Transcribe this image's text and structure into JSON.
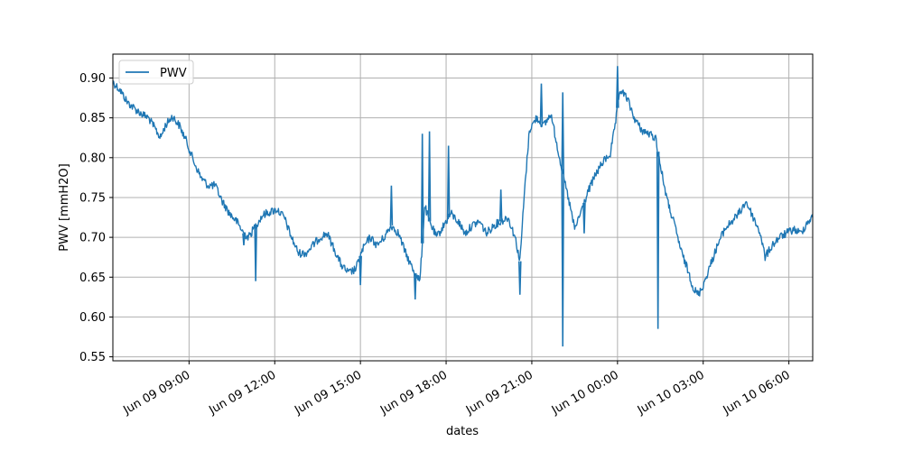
{
  "chart_data": {
    "type": "line",
    "title": "",
    "xlabel": "dates",
    "ylabel": "PWV [mmH2O]",
    "x_type": "datetime",
    "xlim": [
      "2024-06-09T06:20",
      "2024-06-10T06:50"
    ],
    "ylim": [
      0.545,
      0.93
    ],
    "grid": true,
    "legend": {
      "placement": "top-left",
      "entries": [
        "PWV"
      ]
    },
    "x_ticks": [
      {
        "value": "2024-06-09T09:00",
        "label": "Jun 09 09:00"
      },
      {
        "value": "2024-06-09T12:00",
        "label": "Jun 09 12:00"
      },
      {
        "value": "2024-06-09T15:00",
        "label": "Jun 09 15:00"
      },
      {
        "value": "2024-06-09T18:00",
        "label": "Jun 09 18:00"
      },
      {
        "value": "2024-06-09T21:00",
        "label": "Jun 09 21:00"
      },
      {
        "value": "2024-06-10T00:00",
        "label": "Jun 10 00:00"
      },
      {
        "value": "2024-06-10T03:00",
        "label": "Jun 10 03:00"
      },
      {
        "value": "2024-06-10T06:00",
        "label": "Jun 10 06:00"
      }
    ],
    "y_ticks": [
      {
        "value": 0.55,
        "label": "0.55"
      },
      {
        "value": 0.6,
        "label": "0.60"
      },
      {
        "value": 0.65,
        "label": "0.65"
      },
      {
        "value": 0.7,
        "label": "0.70"
      },
      {
        "value": 0.75,
        "label": "0.75"
      },
      {
        "value": 0.8,
        "label": "0.80"
      },
      {
        "value": 0.85,
        "label": "0.85"
      },
      {
        "value": 0.9,
        "label": "0.90"
      }
    ],
    "colors": {
      "series": "#1f77b4",
      "grid": "#b0b0b0"
    },
    "series": [
      {
        "name": "PWV",
        "points": [
          [
            "2024-06-09T06:20",
            0.895
          ],
          [
            "2024-06-09T06:35",
            0.885
          ],
          [
            "2024-06-09T06:50",
            0.87
          ],
          [
            "2024-06-09T07:05",
            0.862
          ],
          [
            "2024-06-09T07:20",
            0.855
          ],
          [
            "2024-06-09T07:35",
            0.85
          ],
          [
            "2024-06-09T07:50",
            0.835
          ],
          [
            "2024-06-09T08:00",
            0.825
          ],
          [
            "2024-06-09T08:10",
            0.84
          ],
          [
            "2024-06-09T08:25",
            0.852
          ],
          [
            "2024-06-09T08:40",
            0.84
          ],
          [
            "2024-06-09T08:55",
            0.82
          ],
          [
            "2024-06-09T09:10",
            0.795
          ],
          [
            "2024-06-09T09:25",
            0.775
          ],
          [
            "2024-06-09T09:40",
            0.765
          ],
          [
            "2024-06-09T09:55",
            0.765
          ],
          [
            "2024-06-09T10:10",
            0.745
          ],
          [
            "2024-06-09T10:25",
            0.73
          ],
          [
            "2024-06-09T10:40",
            0.72
          ],
          [
            "2024-06-09T10:55",
            0.705
          ],
          [
            "2024-06-09T11:05",
            0.7
          ],
          [
            "2024-06-09T11:20",
            0.715
          ],
          [
            "2024-06-09T11:35",
            0.728
          ],
          [
            "2024-06-09T11:50",
            0.732
          ],
          [
            "2024-06-09T12:05",
            0.735
          ],
          [
            "2024-06-09T12:20",
            0.725
          ],
          [
            "2024-06-09T12:35",
            0.7
          ],
          [
            "2024-06-09T12:50",
            0.68
          ],
          [
            "2024-06-09T13:05",
            0.68
          ],
          [
            "2024-06-09T13:20",
            0.69
          ],
          [
            "2024-06-09T13:35",
            0.7
          ],
          [
            "2024-06-09T13:50",
            0.705
          ],
          [
            "2024-06-09T14:05",
            0.685
          ],
          [
            "2024-06-09T14:20",
            0.665
          ],
          [
            "2024-06-09T14:35",
            0.655
          ],
          [
            "2024-06-09T14:50",
            0.66
          ],
          [
            "2024-06-09T15:05",
            0.685
          ],
          [
            "2024-06-09T15:20",
            0.7
          ],
          [
            "2024-06-09T15:35",
            0.69
          ],
          [
            "2024-06-09T15:50",
            0.7
          ],
          [
            "2024-06-09T16:05",
            0.715
          ],
          [
            "2024-06-09T16:20",
            0.705
          ],
          [
            "2024-06-09T16:35",
            0.68
          ],
          [
            "2024-06-09T16:50",
            0.66
          ],
          [
            "2024-06-09T17:05",
            0.645
          ],
          [
            "2024-06-09T17:15",
            0.74
          ],
          [
            "2024-06-09T17:25",
            0.72
          ],
          [
            "2024-06-09T17:40",
            0.7
          ],
          [
            "2024-06-09T17:55",
            0.715
          ],
          [
            "2024-06-09T18:10",
            0.73
          ],
          [
            "2024-06-09T18:25",
            0.72
          ],
          [
            "2024-06-09T18:40",
            0.705
          ],
          [
            "2024-06-09T18:55",
            0.715
          ],
          [
            "2024-06-09T19:10",
            0.72
          ],
          [
            "2024-06-09T19:25",
            0.705
          ],
          [
            "2024-06-09T19:40",
            0.715
          ],
          [
            "2024-06-09T19:55",
            0.72
          ],
          [
            "2024-06-09T20:10",
            0.725
          ],
          [
            "2024-06-09T20:25",
            0.7
          ],
          [
            "2024-06-09T20:35",
            0.67
          ],
          [
            "2024-06-09T20:45",
            0.76
          ],
          [
            "2024-06-09T20:55",
            0.835
          ],
          [
            "2024-06-09T21:10",
            0.85
          ],
          [
            "2024-06-09T21:25",
            0.84
          ],
          [
            "2024-06-09T21:40",
            0.855
          ],
          [
            "2024-06-09T21:55",
            0.81
          ],
          [
            "2024-06-09T22:05",
            0.78
          ],
          [
            "2024-06-09T22:20",
            0.74
          ],
          [
            "2024-06-09T22:30",
            0.71
          ],
          [
            "2024-06-09T22:45",
            0.735
          ],
          [
            "2024-06-09T23:00",
            0.76
          ],
          [
            "2024-06-09T23:15",
            0.78
          ],
          [
            "2024-06-09T23:30",
            0.795
          ],
          [
            "2024-06-09T23:45",
            0.805
          ],
          [
            "2024-06-09T23:55",
            0.84
          ],
          [
            "2024-06-10T00:05",
            0.885
          ],
          [
            "2024-06-10T00:20",
            0.875
          ],
          [
            "2024-06-10T00:35",
            0.85
          ],
          [
            "2024-06-10T00:50",
            0.835
          ],
          [
            "2024-06-10T01:05",
            0.83
          ],
          [
            "2024-06-10T01:20",
            0.825
          ],
          [
            "2024-06-10T01:30",
            0.79
          ],
          [
            "2024-06-10T01:45",
            0.745
          ],
          [
            "2024-06-10T02:00",
            0.715
          ],
          [
            "2024-06-10T02:15",
            0.68
          ],
          [
            "2024-06-10T02:30",
            0.655
          ],
          [
            "2024-06-10T02:40",
            0.635
          ],
          [
            "2024-06-10T02:50",
            0.628
          ],
          [
            "2024-06-10T03:00",
            0.64
          ],
          [
            "2024-06-10T03:15",
            0.665
          ],
          [
            "2024-06-10T03:30",
            0.69
          ],
          [
            "2024-06-10T03:45",
            0.71
          ],
          [
            "2024-06-10T04:00",
            0.72
          ],
          [
            "2024-06-10T04:15",
            0.73
          ],
          [
            "2024-06-10T04:30",
            0.745
          ],
          [
            "2024-06-10T04:45",
            0.725
          ],
          [
            "2024-06-10T05:00",
            0.705
          ],
          [
            "2024-06-10T05:10",
            0.675
          ],
          [
            "2024-06-10T05:25",
            0.69
          ],
          [
            "2024-06-10T05:40",
            0.7
          ],
          [
            "2024-06-10T05:55",
            0.705
          ],
          [
            "2024-06-10T06:10",
            0.71
          ],
          [
            "2024-06-10T06:25",
            0.705
          ],
          [
            "2024-06-10T06:40",
            0.72
          ],
          [
            "2024-06-10T06:50",
            0.725
          ]
        ],
        "spikes": [
          [
            "2024-06-09T10:55",
            0.69
          ],
          [
            "2024-06-09T11:20",
            0.645
          ],
          [
            "2024-06-09T15:00",
            0.64
          ],
          [
            "2024-06-09T16:05",
            0.765
          ],
          [
            "2024-06-09T16:55",
            0.622
          ],
          [
            "2024-06-09T17:10",
            0.83
          ],
          [
            "2024-06-09T17:25",
            0.833
          ],
          [
            "2024-06-09T18:05",
            0.815
          ],
          [
            "2024-06-09T19:55",
            0.76
          ],
          [
            "2024-06-09T20:35",
            0.628
          ],
          [
            "2024-06-09T21:20",
            0.893
          ],
          [
            "2024-06-09T22:05",
            0.563
          ],
          [
            "2024-06-09T22:05",
            0.882
          ],
          [
            "2024-06-09T22:50",
            0.705
          ],
          [
            "2024-06-10T00:00",
            0.915
          ],
          [
            "2024-06-10T01:25",
            0.585
          ]
        ]
      }
    ]
  }
}
